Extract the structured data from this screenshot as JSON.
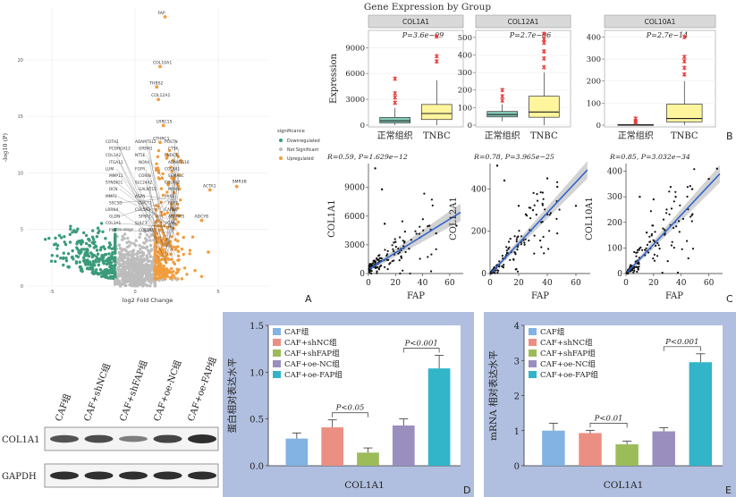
{
  "figure": {
    "panel_letters": [
      "A",
      "B",
      "C",
      "D",
      "E"
    ]
  },
  "colors": {
    "downregulated": "#3a9b7a",
    "not_significant": "#bdbdbd",
    "upregulated": "#f39c3c",
    "box_normal": "#86c9b8",
    "box_tnbc": "#fff59d",
    "outlier": "#e63a3a",
    "strip": "#d9d9d9",
    "scatter_line": "#3366cc",
    "ci": "#c8c8c8",
    "panel_bg": "#b0bfdf",
    "bars": [
      "#82b3e2",
      "#ec8f83",
      "#9cbc5a",
      "#9a8ebf",
      "#33b5c9"
    ]
  },
  "chart_data": [
    {
      "type": "scatter",
      "panel": "A",
      "title": "",
      "xlabel": "log2 Fold Change",
      "ylabel": "-log10 (P)",
      "xticks": [
        "-5",
        "0",
        "5"
      ],
      "yticks": [
        "0",
        "5",
        "10",
        "15",
        "20"
      ],
      "xlim": [
        -6.5,
        8
      ],
      "ylim": [
        0,
        24.5
      ],
      "legend": {
        "title": "significance",
        "position": "right",
        "items": [
          "Downregulated",
          "Not Significant",
          "Upregulated"
        ]
      },
      "labeled_points": [
        {
          "label": "FAP",
          "x": 1.8,
          "y": 23.8
        },
        {
          "label": "COL10A1",
          "x": 1.5,
          "y": 19.4
        },
        {
          "label": "THBS2",
          "x": 1.3,
          "y": 17.6
        },
        {
          "label": "COL12A1",
          "x": 1.4,
          "y": 16.5
        },
        {
          "label": "LRRC15",
          "x": 1.7,
          "y": 14.2
        },
        {
          "label": "CTHRC1",
          "x": 1.5,
          "y": 12.7
        },
        {
          "label": "SMR3B",
          "x": 6.1,
          "y": 8.8
        },
        {
          "label": "ACTA1",
          "x": 4.5,
          "y": 8.5
        },
        {
          "label": "ADCY8",
          "x": 4.0,
          "y": 5.8
        }
      ],
      "crowd_labels": [
        "COTH1",
        "ADAMTS12",
        "POSTN",
        "PCDHGA12",
        "GREM1",
        "CTSK",
        "COL1A2",
        "NT5E",
        "FNDC1",
        "ITGA11",
        "NOX4",
        "ADAMTS16",
        "LUM",
        "FGFR",
        "COL8A1",
        "MMP11",
        "CORIN",
        "SEMA3C",
        "SYNDIG1",
        "SLC24A2",
        "COL4A2",
        "DCN",
        "GALNT15",
        "MYH4",
        "MMP2",
        "ASPN",
        "PAX1",
        "SSC5D",
        "DACT1",
        "FGF7",
        "LRRN4",
        "COL5A3",
        "CAPN6",
        "GLDN",
        "SFRP2",
        "ADAMTS",
        "COL3A1",
        "SULF1",
        "VCAN",
        "FN1",
        "COL1A1"
      ]
    },
    {
      "type": "box",
      "panel": "B",
      "title": "Gene Expression by Group",
      "ylabel": "Expression",
      "facets": [
        {
          "gene": "COL1A1",
          "p": "P=3.6e−09",
          "categories": [
            "正常组织",
            "TNBC"
          ],
          "ylim": [
            0,
            11000
          ],
          "yticks": [
            0,
            3000,
            6000,
            9000
          ],
          "boxes": [
            {
              "q1": 250,
              "med": 500,
              "q3": 900,
              "lo": 0,
              "hi": 2000,
              "out": [
                2600,
                3200,
                3700,
                5400
              ]
            },
            {
              "q1": 650,
              "med": 1350,
              "q3": 2400,
              "lo": 0,
              "hi": 5200,
              "out": [
                7400,
                8000,
                10300
              ]
            }
          ]
        },
        {
          "gene": "COL12A1",
          "p": "P=2.7e−06",
          "categories": [
            "正常组织",
            "TNBC"
          ],
          "ylim": [
            0,
            540
          ],
          "yticks": [
            0,
            100,
            200,
            300,
            400,
            500
          ],
          "boxes": [
            {
              "q1": 47,
              "med": 60,
              "q3": 78,
              "lo": 22,
              "hi": 120,
              "out": [
                140,
                165,
                200
              ]
            },
            {
              "q1": 45,
              "med": 75,
              "q3": 165,
              "lo": 0,
              "hi": 300,
              "out": [
                330,
                380,
                420,
                470,
                490,
                520
              ]
            }
          ]
        },
        {
          "gene": "COL10A1",
          "p": "P=2.7e−14",
          "categories": [
            "正常组织",
            "TNBC"
          ],
          "ylim": [
            0,
            430
          ],
          "yticks": [
            0,
            100,
            200,
            300,
            400
          ],
          "boxes": [
            {
              "q1": 0,
              "med": 1,
              "q3": 3,
              "lo": 0,
              "hi": 7,
              "out": [
                12,
                18,
                30
              ]
            },
            {
              "q1": 15,
              "med": 30,
              "q3": 95,
              "lo": 0,
              "hi": 200,
              "out": [
                230,
                260,
                290,
                310,
                400
              ]
            }
          ]
        }
      ]
    },
    {
      "type": "scatter",
      "panel": "C",
      "xlabel": "FAP",
      "facets": [
        {
          "ylabel": "COL1A1",
          "stats": "R=0.59, P=1.629e−12",
          "xlim": [
            0,
            70
          ],
          "ylim": [
            0,
            11500
          ],
          "xticks": [
            0,
            20,
            40,
            60
          ],
          "yticks": [
            0,
            3000,
            6000,
            9000
          ],
          "fit": [
            [
              1,
              500
            ],
            [
              68,
              6400
            ]
          ],
          "highlight": [
            [
              5,
              11000
            ],
            [
              20,
              3300
            ],
            [
              45,
              5000
            ],
            [
              65,
              5000
            ],
            [
              30,
              2600
            ],
            [
              10,
              8800
            ],
            [
              12,
              5200
            ],
            [
              50,
              4200
            ]
          ]
        },
        {
          "ylabel": "COL12A1",
          "stats": "R=0.78, P=3.965e−25",
          "xlim": [
            0,
            70
          ],
          "ylim": [
            0,
            520
          ],
          "xticks": [
            0,
            20,
            40,
            60
          ],
          "yticks": [
            0,
            200,
            400
          ],
          "fit": [
            [
              1,
              5
            ],
            [
              68,
              490
            ]
          ],
          "highlight": [
            [
              5,
              510
            ],
            [
              10,
              440
            ],
            [
              20,
              320
            ],
            [
              40,
              450
            ],
            [
              60,
              320
            ],
            [
              25,
              280
            ],
            [
              30,
              300
            ],
            [
              47,
              410
            ]
          ]
        },
        {
          "ylabel": "COL10A1",
          "stats": "R=0.85, P=3.032e−34",
          "xlim": [
            0,
            70
          ],
          "ylim": [
            0,
            430
          ],
          "xticks": [
            0,
            20,
            40,
            60
          ],
          "yticks": [
            0,
            100,
            200,
            300,
            400
          ],
          "fit": [
            [
              1,
              5
            ],
            [
              68,
              390
            ]
          ],
          "highlight": [
            [
              10,
              300
            ],
            [
              20,
              290
            ],
            [
              28,
              170
            ],
            [
              36,
              300
            ],
            [
              48,
              330
            ],
            [
              60,
              370
            ],
            [
              66,
              410
            ],
            [
              15,
              160
            ]
          ]
        }
      ]
    },
    {
      "type": "bar",
      "panel": "D",
      "ylabel": "蛋白相对表达水平",
      "xlabel": "COL1A1",
      "ylim": [
        0,
        1.5
      ],
      "yticks": [
        "0.0",
        "0.5",
        "1.0",
        "1.5"
      ],
      "categories": [
        "CAF组",
        "CAF+shNC组",
        "CAF+shFAP组",
        "CAF+oe-NC组",
        "CAF+oe-FAP组"
      ],
      "values": [
        0.29,
        0.41,
        0.14,
        0.43,
        1.04
      ],
      "errors": [
        0.06,
        0.08,
        0.05,
        0.07,
        0.14
      ],
      "annotations": [
        {
          "text": "P<0.05",
          "from": 1,
          "to": 2
        },
        {
          "text": "P<0.001",
          "from": 3,
          "to": 4
        }
      ]
    },
    {
      "type": "bar",
      "panel": "E",
      "ylabel": "mRNA 相对表达水平",
      "xlabel": "COL1A1",
      "ylim": [
        0,
        4
      ],
      "yticks": [
        "0",
        "1",
        "2",
        "3",
        "4"
      ],
      "categories": [
        "CAF组",
        "CAF+shNC组",
        "CAF+shFAP组",
        "CAF+oe-NC组",
        "CAF+oe-FAP组"
      ],
      "values": [
        1.0,
        0.93,
        0.61,
        0.98,
        2.95
      ],
      "errors": [
        0.21,
        0.08,
        0.09,
        0.1,
        0.24
      ],
      "annotations": [
        {
          "text": "P<0.01",
          "from": 1,
          "to": 2
        },
        {
          "text": "P<0.001",
          "from": 3,
          "to": 4
        }
      ]
    }
  ],
  "western_blot": {
    "lanes": [
      "CAF组",
      "CAF+shNC组",
      "CAF+shFAP组",
      "CAF+oe-NC组",
      "CAF+oe-FAP组"
    ],
    "rows": [
      "COL1A1",
      "GAPDH"
    ],
    "intensity": [
      [
        0.75,
        0.8,
        0.45,
        0.85,
        1.0
      ],
      [
        1,
        1,
        1,
        1,
        1
      ]
    ]
  }
}
